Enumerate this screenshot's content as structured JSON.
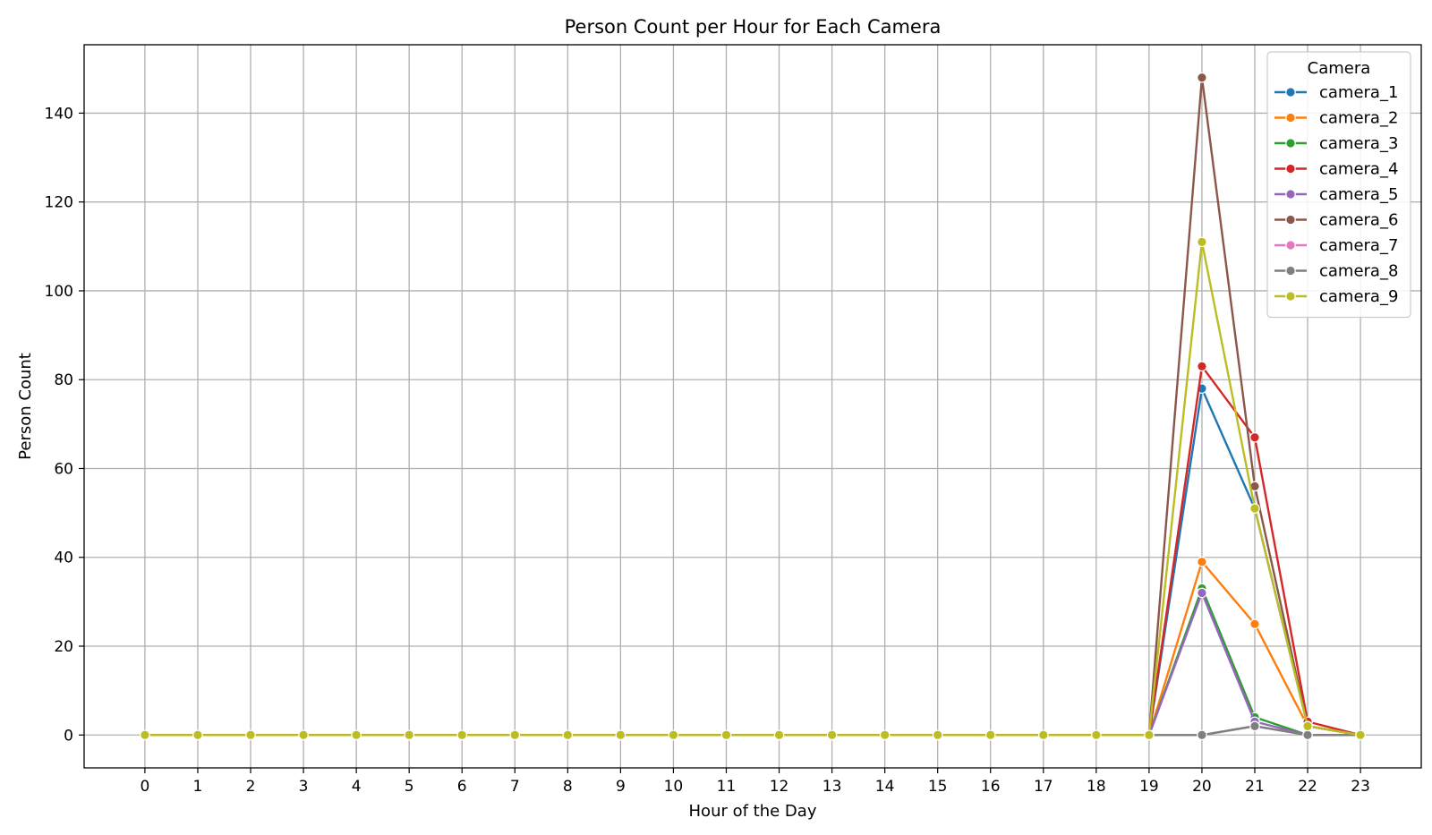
{
  "chart_data": {
    "type": "line",
    "title": "Person Count per Hour for Each Camera",
    "xlabel": "Hour of the Day",
    "ylabel": "Person Count",
    "x": [
      0,
      1,
      2,
      3,
      4,
      5,
      6,
      7,
      8,
      9,
      10,
      11,
      12,
      13,
      14,
      15,
      16,
      17,
      18,
      19,
      20,
      21,
      22,
      23
    ],
    "xlim": [
      -1.15,
      24.15
    ],
    "ylim": [
      -7.4,
      155.4
    ],
    "yticks": [
      0,
      20,
      40,
      60,
      80,
      100,
      120,
      140
    ],
    "grid": true,
    "legend": {
      "title": "Camera",
      "placement": "top-right"
    },
    "series": [
      {
        "name": "camera_1",
        "color": "#1f77b4",
        "values": [
          0,
          0,
          0,
          0,
          0,
          0,
          0,
          0,
          0,
          0,
          0,
          0,
          0,
          0,
          0,
          0,
          0,
          0,
          0,
          0,
          78,
          51,
          2,
          0
        ]
      },
      {
        "name": "camera_2",
        "color": "#ff7f0e",
        "values": [
          0,
          0,
          0,
          0,
          0,
          0,
          0,
          0,
          0,
          0,
          0,
          0,
          0,
          0,
          0,
          0,
          0,
          0,
          0,
          0,
          39,
          25,
          2,
          0
        ]
      },
      {
        "name": "camera_3",
        "color": "#2ca02c",
        "values": [
          0,
          0,
          0,
          0,
          0,
          0,
          0,
          0,
          0,
          0,
          0,
          0,
          0,
          0,
          0,
          0,
          0,
          0,
          0,
          0,
          33,
          4,
          0,
          0
        ]
      },
      {
        "name": "camera_4",
        "color": "#d62728",
        "values": [
          0,
          0,
          0,
          0,
          0,
          0,
          0,
          0,
          0,
          0,
          0,
          0,
          0,
          0,
          0,
          0,
          0,
          0,
          0,
          0,
          83,
          67,
          3,
          0
        ]
      },
      {
        "name": "camera_5",
        "color": "#9467bd",
        "values": [
          0,
          0,
          0,
          0,
          0,
          0,
          0,
          0,
          0,
          0,
          0,
          0,
          0,
          0,
          0,
          0,
          0,
          0,
          0,
          0,
          32,
          3,
          0,
          0
        ]
      },
      {
        "name": "camera_6",
        "color": "#8c564b",
        "values": [
          0,
          0,
          0,
          0,
          0,
          0,
          0,
          0,
          0,
          0,
          0,
          0,
          0,
          0,
          0,
          0,
          0,
          0,
          0,
          0,
          148,
          56,
          2,
          0
        ]
      },
      {
        "name": "camera_7",
        "color": "#e377c2",
        "values": [
          0,
          0,
          0,
          0,
          0,
          0,
          0,
          0,
          0,
          0,
          0,
          0,
          0,
          0,
          0,
          0,
          0,
          0,
          0,
          0,
          0,
          2,
          0,
          0
        ]
      },
      {
        "name": "camera_8",
        "color": "#7f7f7f",
        "values": [
          0,
          0,
          0,
          0,
          0,
          0,
          0,
          0,
          0,
          0,
          0,
          0,
          0,
          0,
          0,
          0,
          0,
          0,
          0,
          0,
          0,
          2,
          0,
          0
        ]
      },
      {
        "name": "camera_9",
        "color": "#bcbd22",
        "values": [
          0,
          0,
          0,
          0,
          0,
          0,
          0,
          0,
          0,
          0,
          0,
          0,
          0,
          0,
          0,
          0,
          0,
          0,
          0,
          0,
          111,
          51,
          2,
          0
        ]
      }
    ]
  }
}
